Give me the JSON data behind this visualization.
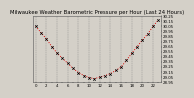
{
  "title": "Milwaukee Weather Barometric Pressure per Hour (Last 24 Hours)",
  "hours": [
    0,
    1,
    2,
    3,
    4,
    5,
    6,
    7,
    8,
    9,
    10,
    11,
    12,
    13,
    14,
    15,
    16,
    17,
    18,
    19,
    20,
    21,
    22,
    23
  ],
  "pressure": [
    30.05,
    29.92,
    29.8,
    29.65,
    29.52,
    29.42,
    29.32,
    29.22,
    29.14,
    29.08,
    29.04,
    29.02,
    29.05,
    29.08,
    29.12,
    29.18,
    29.25,
    29.38,
    29.52,
    29.65,
    29.78,
    29.9,
    30.05,
    30.18
  ],
  "line_color": "#dd0000",
  "marker_color": "#000000",
  "bg_color": "#d4d0c8",
  "plot_bg_color": "#d4d0c8",
  "grid_color": "#888888",
  "ylim_min": 28.95,
  "ylim_max": 30.25,
  "ytick_interval": 0.1,
  "title_fontsize": 3.8,
  "tick_fontsize": 2.8,
  "xlabel_step": 1
}
